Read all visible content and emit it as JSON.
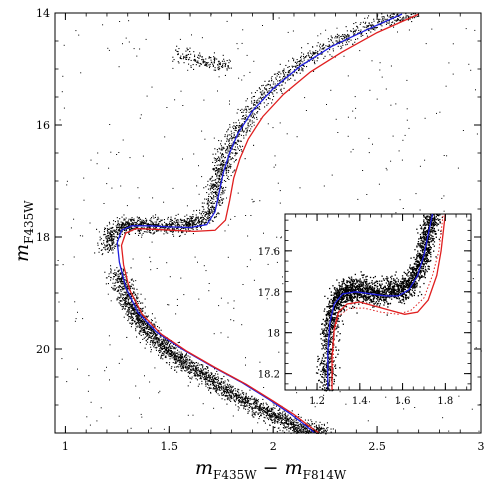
{
  "chart_data": [
    {
      "type": "scatter",
      "title": "",
      "xlabel": "m",
      "xlabel_sub_1": "F435W",
      "xlabel_minus": " − m",
      "xlabel_sub_2": "F814W",
      "ylabel": "m",
      "ylabel_sub": "F435W",
      "xlim": [
        0.95,
        3.0
      ],
      "ylim": [
        21.5,
        14.0
      ],
      "y_inverted": true,
      "xticks": [
        1,
        1.5,
        2,
        2.5,
        3
      ],
      "xtick_labels": [
        "1",
        "1.5",
        "2",
        "2.5",
        "3"
      ],
      "yticks": [
        14,
        16,
        18,
        20
      ],
      "ytick_labels": [
        "14",
        "16",
        "18",
        "20"
      ],
      "grid": false,
      "legend": "none",
      "series": [
        {
          "kind": "points",
          "color": "#000000",
          "x": [
            1.2,
            1.22,
            1.26,
            1.3,
            1.36,
            1.42,
            1.5,
            1.58,
            1.64,
            1.69,
            1.72,
            1.74,
            1.76,
            1.79,
            1.83,
            1.89,
            1.97,
            2.07,
            2.2,
            2.35,
            2.52,
            2.68
          ],
          "y": [
            18.2,
            17.95,
            17.82,
            17.78,
            17.78,
            17.78,
            17.79,
            17.78,
            17.72,
            17.55,
            17.2,
            16.9,
            16.7,
            16.4,
            16.1,
            15.75,
            15.4,
            15.05,
            14.7,
            14.4,
            14.15,
            14.0
          ]
        },
        {
          "kind": "points",
          "color": "#000000",
          "x": [
            1.25,
            1.3,
            1.36,
            1.44,
            1.55,
            1.68,
            1.83,
            1.98,
            2.12,
            2.25
          ],
          "y": [
            18.6,
            19.1,
            19.5,
            19.85,
            20.2,
            20.5,
            20.85,
            21.15,
            21.4,
            21.5
          ]
        },
        {
          "kind": "points",
          "color": "#000000",
          "x": [
            1.54,
            1.58,
            1.62,
            1.66,
            1.7,
            1.74,
            1.78
          ],
          "y": [
            14.72,
            14.78,
            14.82,
            14.85,
            14.87,
            14.9,
            14.93
          ]
        },
        {
          "kind": "line",
          "color": "#1f1fe0",
          "x": [
            2.2,
            2.15,
            2.08,
            1.98,
            1.85,
            1.7,
            1.56,
            1.44,
            1.35,
            1.29,
            1.26,
            1.25,
            1.27,
            1.32,
            1.4,
            1.5,
            1.6,
            1.68,
            1.72,
            1.74,
            1.76,
            1.79,
            1.83,
            1.9,
            2.0,
            2.13,
            2.28,
            2.45,
            2.62
          ],
          "y": [
            21.5,
            21.35,
            21.15,
            20.9,
            20.6,
            20.3,
            20.0,
            19.7,
            19.35,
            18.9,
            18.45,
            18.1,
            17.88,
            17.8,
            17.8,
            17.82,
            17.83,
            17.78,
            17.55,
            17.2,
            16.85,
            16.5,
            16.15,
            15.75,
            15.35,
            14.95,
            14.6,
            14.3,
            14.02
          ]
        },
        {
          "kind": "line",
          "color": "#e01f1f",
          "x": [
            2.22,
            2.17,
            2.1,
            2.0,
            1.87,
            1.72,
            1.58,
            1.46,
            1.37,
            1.31,
            1.28,
            1.27,
            1.29,
            1.34,
            1.42,
            1.52,
            1.62,
            1.72,
            1.77,
            1.79,
            1.81,
            1.84,
            1.88,
            1.95,
            2.05,
            2.18,
            2.33,
            2.5,
            2.7
          ],
          "y": [
            21.5,
            21.37,
            21.17,
            20.93,
            20.63,
            20.33,
            20.03,
            19.73,
            19.38,
            18.95,
            18.5,
            18.15,
            17.93,
            17.85,
            17.86,
            17.88,
            17.9,
            17.88,
            17.7,
            17.35,
            16.95,
            16.6,
            16.25,
            15.85,
            15.45,
            15.05,
            14.7,
            14.35,
            14.02
          ]
        }
      ]
    },
    {
      "type": "scatter",
      "title": "",
      "xlabel": "",
      "ylabel": "",
      "xlim": [
        1.05,
        1.92
      ],
      "ylim": [
        18.28,
        17.42
      ],
      "y_inverted": true,
      "xticks": [
        1.2,
        1.4,
        1.6,
        1.8
      ],
      "xtick_labels": [
        "1.2",
        "1.4",
        "1.6",
        "1.8"
      ],
      "yticks": [
        17.6,
        17.8,
        18,
        18.2
      ],
      "ytick_labels": [
        "17.6",
        "17.8",
        "18",
        "18.2"
      ],
      "grid": false,
      "legend": "none",
      "series": [
        {
          "kind": "points",
          "color": "#000000",
          "x": [
            1.24,
            1.25,
            1.27,
            1.3,
            1.34,
            1.4,
            1.46,
            1.52,
            1.58,
            1.63,
            1.67,
            1.7,
            1.72,
            1.74
          ],
          "y": [
            18.28,
            18.05,
            17.9,
            17.82,
            17.79,
            17.79,
            17.8,
            17.8,
            17.79,
            17.76,
            17.7,
            17.6,
            17.5,
            17.42
          ]
        },
        {
          "kind": "line",
          "color": "#1f1fe0",
          "x": [
            1.25,
            1.25,
            1.26,
            1.28,
            1.32,
            1.38,
            1.45,
            1.52,
            1.58,
            1.63,
            1.67,
            1.7,
            1.72,
            1.74
          ],
          "y": [
            18.28,
            18.1,
            17.95,
            17.86,
            17.81,
            17.8,
            17.81,
            17.82,
            17.82,
            17.79,
            17.72,
            17.62,
            17.52,
            17.42
          ]
        },
        {
          "kind": "line",
          "color": "#e01f1f",
          "x": [
            1.27,
            1.27,
            1.28,
            1.3,
            1.34,
            1.4,
            1.47,
            1.54,
            1.61,
            1.67,
            1.72,
            1.76,
            1.78,
            1.8
          ],
          "y": [
            18.28,
            18.12,
            17.98,
            17.9,
            17.86,
            17.85,
            17.87,
            17.89,
            17.91,
            17.9,
            17.84,
            17.72,
            17.6,
            17.42
          ]
        },
        {
          "kind": "dotted-line",
          "color": "#e01f1f",
          "x": [
            1.27,
            1.28,
            1.3,
            1.35,
            1.42,
            1.5,
            1.58,
            1.64,
            1.7,
            1.74,
            1.77,
            1.79
          ],
          "y": [
            18.28,
            18.0,
            17.92,
            17.88,
            17.88,
            17.9,
            17.91,
            17.89,
            17.83,
            17.72,
            17.6,
            17.42
          ]
        }
      ]
    }
  ]
}
